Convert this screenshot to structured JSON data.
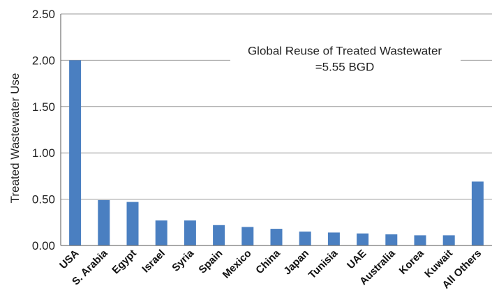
{
  "chart_data": {
    "type": "bar",
    "title": "",
    "xlabel": "",
    "ylabel": "Treated Wastewater Use",
    "ylim": [
      0,
      2.5
    ],
    "yticks": [
      "0.00",
      "0.50",
      "1.00",
      "1.50",
      "2.00",
      "2.50"
    ],
    "grid": true,
    "bar_color": "#4a7fc1",
    "annotation": {
      "line1": "Global Reuse of Treated Wastewater",
      "line2": "=5.55 BGD"
    },
    "categories": [
      "USA",
      "S. Arabia",
      "Egypt",
      "Israel",
      "Syria",
      "Spain",
      "Mexico",
      "China",
      "Japan",
      "Tunisia",
      "UAE",
      "Australia",
      "Korea",
      "Kuwait",
      "All Others"
    ],
    "values": [
      2.0,
      0.49,
      0.47,
      0.27,
      0.27,
      0.22,
      0.2,
      0.18,
      0.15,
      0.14,
      0.13,
      0.12,
      0.11,
      0.11,
      0.69
    ]
  }
}
